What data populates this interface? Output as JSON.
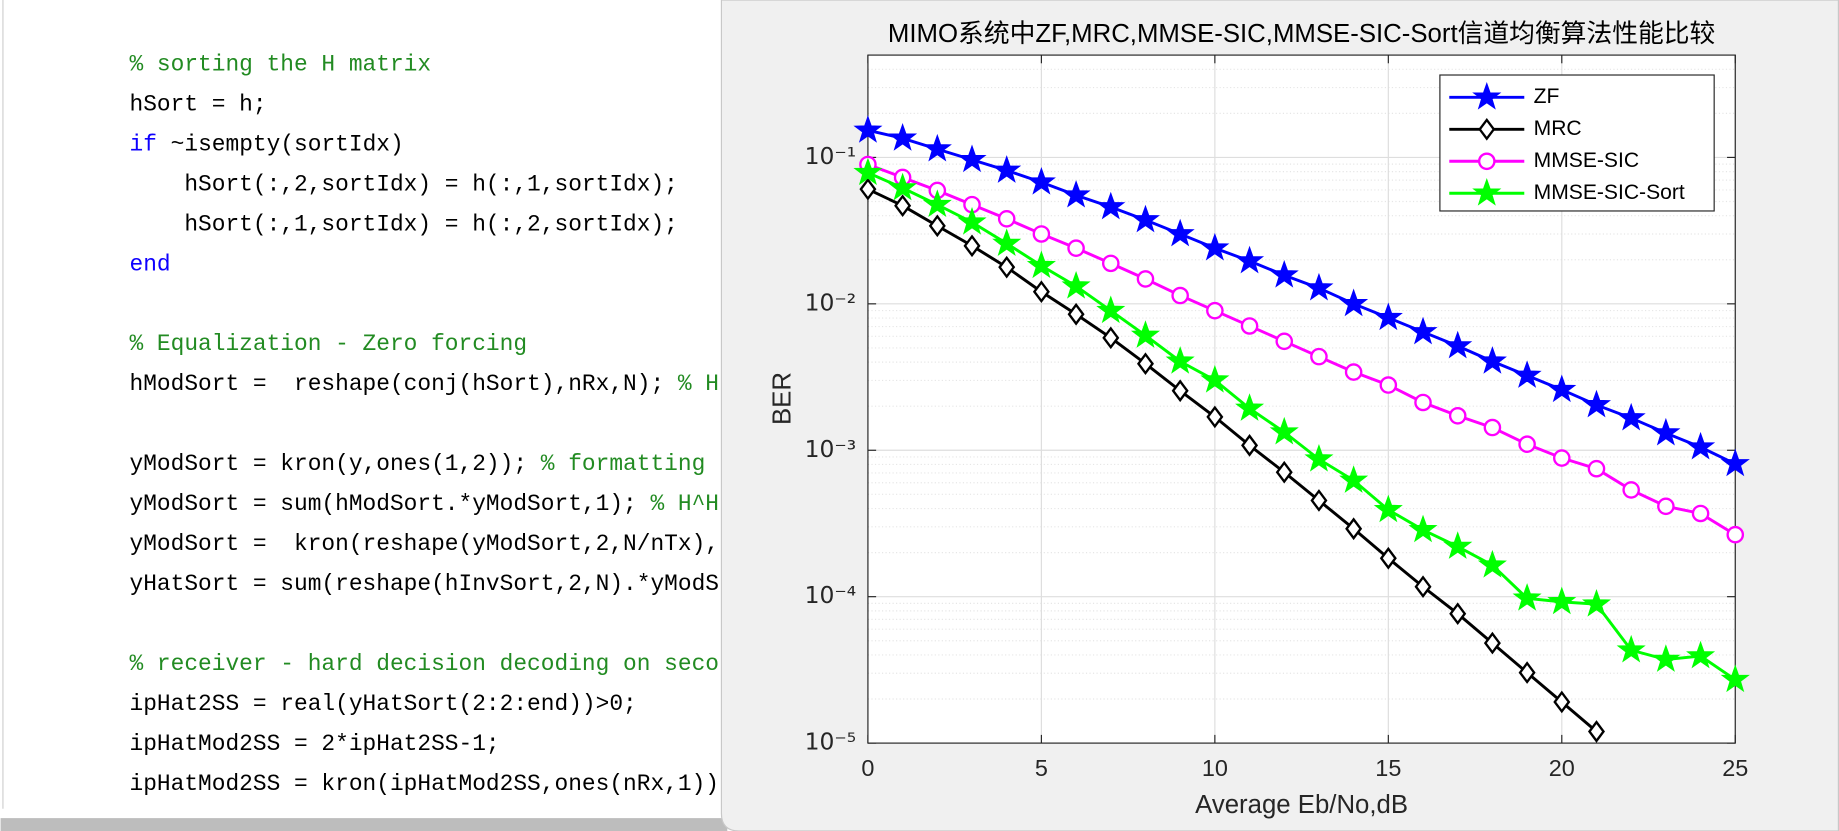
{
  "editor": {
    "blocks": [
      [
        [
          {
            "text": "% sorting the H matrix",
            "color": "#228b22"
          }
        ],
        [
          {
            "text": "hSort = h;"
          }
        ],
        [
          {
            "text": "if",
            "color": "#0e00ff"
          },
          {
            "text": " ~isempty(sortIdx)"
          }
        ],
        [
          {
            "text": "    hSort(:,2,sortIdx) = h(:,1,sortIdx);"
          }
        ],
        [
          {
            "text": "    hSort(:,1,sortIdx) = h(:,2,sortIdx);"
          }
        ],
        [
          {
            "text": "end",
            "color": "#0e00ff"
          }
        ]
      ],
      [
        [
          {
            "text": "% Equalization - Zero forcing",
            "color": "#228b22"
          }
        ],
        [
          {
            "text": "hModSort =  reshape(conj(hSort),nRx,N); "
          },
          {
            "text": "% H",
            "color": "#228b22"
          }
        ]
      ],
      [
        [
          {
            "text": "yModSort = kron(y,ones(1,2)); "
          },
          {
            "text": "% formatting",
            "color": "#228b22"
          }
        ],
        [
          {
            "text": "yModSort = sum(hModSort.*yModSort,1); "
          },
          {
            "text": "% H^H",
            "color": "#228b22"
          }
        ],
        [
          {
            "text": "yModSort =  kron(reshape(yModSort,2,N/nTx),"
          }
        ],
        [
          {
            "text": "yHatSort = sum(reshape(hInvSort,2,N).*yModS"
          }
        ]
      ],
      [
        [
          {
            "text": "% receiver - hard decision decoding on seco",
            "color": "#228b22"
          }
        ],
        [
          {
            "text": "ipHat2SS = real(yHatSort(2:2:end))>0;"
          }
        ],
        [
          {
            "text": "ipHatMod2SS = 2*ipHat2SS-1;"
          }
        ],
        [
          {
            "text": "ipHatMod2SS = kron(ipHatMod2SS,ones(nRx,1))"
          }
        ]
      ]
    ]
  },
  "chart_data": {
    "type": "line",
    "title": "MIMO系统中ZF,MRC,MMSE-SIC,MMSE-SIC-Sort信道均衡算法性能比较",
    "x_label": "Average Eb/No,dB",
    "y_label": "BER",
    "x": [
      0,
      1,
      2,
      3,
      4,
      5,
      6,
      7,
      8,
      9,
      10,
      11,
      12,
      13,
      14,
      15,
      16,
      17,
      18,
      19,
      20,
      21,
      22,
      23,
      24,
      25
    ],
    "series": [
      {
        "name": "ZF",
        "color": "#0000ff",
        "marker": "pentagram",
        "marker_filled": true,
        "values": [
          0.153,
          0.135,
          0.114,
          0.0964,
          0.0815,
          0.0677,
          0.0552,
          0.0459,
          0.0374,
          0.03,
          0.024,
          0.0196,
          0.0157,
          0.0128,
          0.01,
          0.00803,
          0.00643,
          0.00515,
          0.00405,
          0.00324,
          0.00259,
          0.00204,
          0.00166,
          0.00131,
          0.00105,
          0.000807
        ]
      },
      {
        "name": "MRC",
        "color": "#000000",
        "marker": "diamond",
        "marker_filled": false,
        "values": [
          0.0607,
          0.0468,
          0.0341,
          0.0249,
          0.0178,
          0.0121,
          0.00849,
          0.00586,
          0.0039,
          0.00255,
          0.00169,
          0.00108,
          0.000708,
          0.000454,
          0.000291,
          0.000183,
          0.000117,
          7.65e-05,
          4.82e-05,
          3.03e-05,
          1.91e-05,
          1.2e-05,
          null,
          null,
          null,
          null
        ]
      },
      {
        "name": "MMSE-SIC",
        "color": "#ff00ff",
        "marker": "circle",
        "marker_filled": false,
        "values": [
          0.0895,
          0.073,
          0.0595,
          0.0476,
          0.0381,
          0.03,
          0.024,
          0.0189,
          0.0148,
          0.0114,
          0.00898,
          0.00706,
          0.00555,
          0.00436,
          0.00342,
          0.00279,
          0.00212,
          0.00172,
          0.00143,
          0.0011,
          0.000885,
          0.000748,
          0.000536,
          0.000414,
          0.00037,
          0.000265
        ]
      },
      {
        "name": "MMSE-SIC-Sort",
        "color": "#00ff00",
        "marker": "pentagram",
        "marker_filled": true,
        "values": [
          0.0786,
          0.0618,
          0.0476,
          0.0361,
          0.0258,
          0.0182,
          0.0132,
          0.00898,
          0.00608,
          0.00405,
          0.00301,
          0.00193,
          0.00133,
          0.000869,
          0.000622,
          0.000392,
          0.000286,
          0.00022,
          0.000164,
          9.75e-05,
          9.22e-05,
          8.88e-05,
          4.31e-05,
          3.72e-05,
          3.93e-05,
          2.71e-05
        ]
      }
    ],
    "xlim": [
      0,
      25
    ],
    "xticks": [
      0,
      5,
      10,
      15,
      20,
      25
    ],
    "ylim": [
      1e-05,
      0.5
    ],
    "yticks": [
      {
        "value": 1e-05,
        "label": "10⁻⁵"
      },
      {
        "value": 0.0001,
        "label": "10⁻⁴"
      },
      {
        "value": 0.001,
        "label": "10⁻³"
      },
      {
        "value": 0.01,
        "label": "10⁻²"
      },
      {
        "value": 0.1,
        "label": "10⁻¹"
      }
    ],
    "y_log": true,
    "grid": true,
    "minor_grid": true,
    "legend": "northeast"
  }
}
